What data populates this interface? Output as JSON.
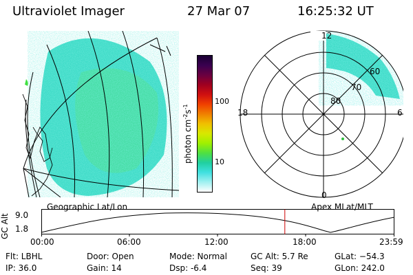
{
  "header": {
    "instrument": "Ultraviolet Imager",
    "date": "27 Mar 07",
    "time": "16:25:32 UT"
  },
  "left_panel": {
    "caption": "Geographic Lat/Lon"
  },
  "right_panel": {
    "caption": "Apex MLat/MLT",
    "mlt_labels": {
      "top": "12",
      "left": "18",
      "right": "6",
      "bottom": "0"
    },
    "lat_labels": [
      "60",
      "70",
      "80"
    ]
  },
  "colorbar": {
    "label": "photon cm",
    "exp1": "-2",
    "mid": "s",
    "exp2": "-1",
    "ticks": [
      "100",
      "10"
    ],
    "colors": [
      "#1a0033",
      "#3a0050",
      "#6a0040",
      "#a00020",
      "#d01010",
      "#f04000",
      "#f08000",
      "#f0c000",
      "#d8e800",
      "#a0f000",
      "#50e040",
      "#20d0a0",
      "#40e0e0",
      "#a0f0f0",
      "#ffffff"
    ]
  },
  "timeline": {
    "ylabel": "GC Alt",
    "ymax": "9.0",
    "ymin": "1.8",
    "ticks": [
      "00:00",
      "06:00",
      "12:00",
      "18:00",
      "23:59"
    ],
    "current_fraction": 0.69
  },
  "footer": {
    "flt": "Flt: LBHL",
    "ip": "IP: 36.0",
    "door": "Door: Open",
    "gain": "Gain: 14",
    "mode": "Mode: Normal",
    "dsp": "Dsp:    -6.4",
    "gcalt": "GC Alt: 5.7 Re",
    "seq": "Seq: 39",
    "glat": "GLat: −54.3",
    "glon": "GLon: 242.0"
  }
}
